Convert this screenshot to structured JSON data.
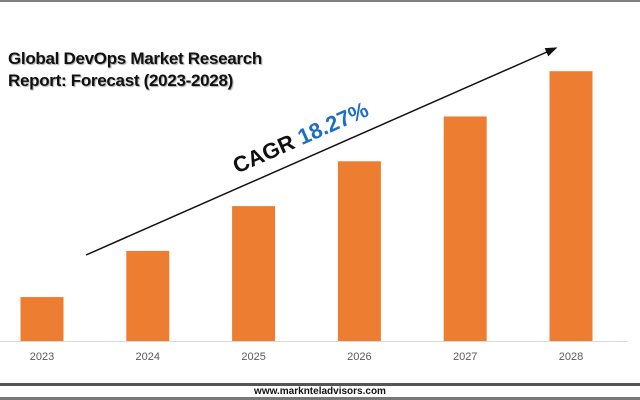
{
  "chart_data": {
    "type": "bar",
    "title": "Global DevOps Market Research Report: Forecast (2023-2028)",
    "title_lines": [
      "Global DevOps Market Research",
      "Report: Forecast (2023-2028)"
    ],
    "categories": [
      "2023",
      "2024",
      "2025",
      "2026",
      "2027",
      "2028"
    ],
    "values": [
      1.0,
      2.05,
      3.07,
      4.09,
      5.11,
      6.14
    ],
    "values_note_units": "relative",
    "ylim": [
      0,
      6.6
    ],
    "xlabel": "",
    "ylabel": "",
    "grid": false,
    "annotation": {
      "label": "CAGR",
      "value": "18.27%"
    },
    "colors": {
      "bar": "#ed7d31",
      "cagr_value": "#1f6fc0",
      "axis": "#d9d9d9"
    }
  },
  "footer": {
    "website": "www.marknteladvisors.com"
  }
}
